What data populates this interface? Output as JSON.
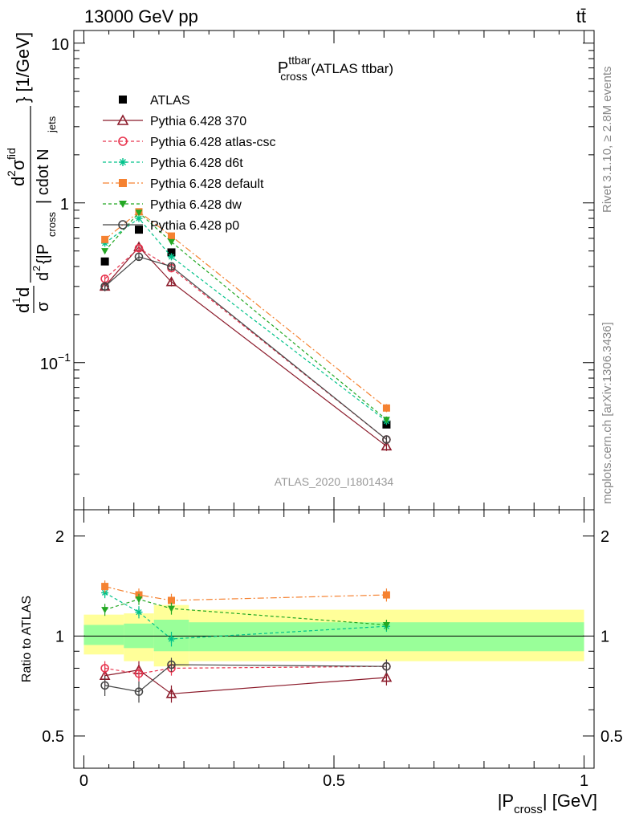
{
  "header": {
    "left": "13000 GeV pp",
    "right": "tt̄"
  },
  "side_right": {
    "top": "Rivet 3.1.10, ≥ 2.8M events",
    "bottom": "mcplots.cern.ch [arXiv:1306.3436]"
  },
  "watermark": "ATLAS_2020_I1801434",
  "chart_data": [
    {
      "type": "line",
      "title": {
        "main": "P",
        "sup": "ttbar",
        "sub": "cross",
        "rest": " (ATLAS ttbar)"
      },
      "ylabel": "d¹d/dσ d²σᵗᵈ / d²{|P_cross| cdot N_jets} [1/GeV]",
      "ylabel_parts": {
        "frac1_num": "d",
        "frac1_sup": "1",
        "frac1_rest": "d",
        "frac1_den": "σ",
        "num": "d",
        "num_sup": "2",
        "num_sigma": "σ",
        "num_sigma_sup": "fid",
        "den_d": "d",
        "den_sup": "2",
        "den_open": "{|P",
        "den_sub": "cross",
        "den_mid": "| cdot N",
        "den_sub2": "jets",
        "tail": "} [1/GeV]"
      },
      "ytype": "log",
      "ylim": [
        0.012,
        12
      ],
      "yticks": [
        {
          "value": 0.1,
          "base": "10",
          "exp": "−1"
        },
        {
          "value": 1,
          "base": "1",
          "exp": ""
        },
        {
          "value": 10,
          "base": "10",
          "exp": ""
        }
      ],
      "x": [
        0.042,
        0.11,
        0.175,
        0.605
      ],
      "series": [
        {
          "name": "ATLAS",
          "color": "#000000",
          "marker": "square-filled",
          "dash": "",
          "y": [
            0.43,
            0.68,
            0.49,
            0.041
          ],
          "yerr": [
            0,
            0,
            0,
            0
          ]
        },
        {
          "name": "Pythia 6.428 370",
          "color": "#8B1A2A",
          "marker": "triangle-open",
          "dash": "",
          "y": [
            0.3,
            0.53,
            0.32,
            0.03
          ],
          "yerr": [
            0.02,
            0.03,
            0.02,
            0.002
          ]
        },
        {
          "name": "Pythia 6.428 atlas-csc",
          "color": "#E8344E",
          "marker": "circle-open",
          "dash": "4,3",
          "y": [
            0.335,
            0.52,
            0.39,
            0.033
          ],
          "yerr": [
            0.015,
            0.02,
            0.02,
            0.002
          ]
        },
        {
          "name": "Pythia 6.428 d6t",
          "color": "#00C28A",
          "marker": "star",
          "dash": "4,3",
          "y": [
            0.56,
            0.8,
            0.46,
            0.043
          ],
          "yerr": [
            0.02,
            0.03,
            0.02,
            0.002
          ]
        },
        {
          "name": "Pythia 6.428 default",
          "color": "#F58231",
          "marker": "square-filled",
          "dash": "8,3,2,3",
          "y": [
            0.59,
            0.88,
            0.62,
            0.052
          ],
          "yerr": [
            0.02,
            0.03,
            0.03,
            0.003
          ]
        },
        {
          "name": "Pythia 6.428 dw",
          "color": "#23A823",
          "marker": "triangle-down",
          "dash": "4,3",
          "y": [
            0.5,
            0.87,
            0.57,
            0.044
          ],
          "yerr": [
            0.02,
            0.03,
            0.02,
            0.002
          ]
        },
        {
          "name": "Pythia 6.428 p0",
          "color": "#444444",
          "marker": "circle-open",
          "dash": "",
          "y": [
            0.3,
            0.46,
            0.4,
            0.033
          ],
          "yerr": [
            0.02,
            0.02,
            0.02,
            0.002
          ]
        }
      ],
      "legend_placement": "upper-left"
    },
    {
      "type": "line",
      "ylabel": "Ratio to ATLAS",
      "xlabel": {
        "open": "|P",
        "sub": "cross",
        "close": "| [GeV]"
      },
      "ytype": "log",
      "ylim": [
        0.4,
        2.4
      ],
      "yticks": [
        0.5,
        1,
        2
      ],
      "xlim": [
        -0.02,
        1.02
      ],
      "xticks": [
        {
          "value": 0,
          "label": "0"
        },
        {
          "value": 0.5,
          "label": "0.5"
        },
        {
          "value": 1,
          "label": "1"
        }
      ],
      "bands": {
        "bins": [
          0.0,
          0.08,
          0.14,
          0.21,
          1.0
        ],
        "inner": [
          [
            0.94,
            1.08
          ],
          [
            0.92,
            1.09
          ],
          [
            0.9,
            1.12
          ],
          [
            0.9,
            1.1
          ]
        ],
        "outer": [
          [
            0.88,
            1.16
          ],
          [
            0.84,
            1.17
          ],
          [
            0.81,
            1.24
          ],
          [
            0.84,
            1.2
          ]
        ],
        "inner_color": "#99FF99",
        "outer_color": "#FFFF99"
      },
      "x": [
        0.042,
        0.11,
        0.175,
        0.605
      ],
      "series": [
        {
          "name": "Pythia 6.428 370",
          "y": [
            0.76,
            0.79,
            0.67,
            0.75
          ],
          "yerr": [
            0.05,
            0.05,
            0.04,
            0.04
          ]
        },
        {
          "name": "Pythia 6.428 atlas-csc",
          "y": [
            0.8,
            0.77,
            0.8,
            0.81
          ],
          "yerr": [
            0.04,
            0.04,
            0.04,
            0.04
          ]
        },
        {
          "name": "Pythia 6.428 d6t",
          "y": [
            1.35,
            1.18,
            0.98,
            1.07
          ],
          "yerr": [
            0.05,
            0.05,
            0.05,
            0.04
          ]
        },
        {
          "name": "Pythia 6.428 default",
          "y": [
            1.41,
            1.33,
            1.28,
            1.33
          ],
          "yerr": [
            0.06,
            0.06,
            0.06,
            0.06
          ]
        },
        {
          "name": "Pythia 6.428 dw",
          "y": [
            1.2,
            1.29,
            1.21,
            1.08
          ],
          "yerr": [
            0.05,
            0.05,
            0.05,
            0.04
          ]
        },
        {
          "name": "Pythia 6.428 p0",
          "y": [
            0.71,
            0.68,
            0.82,
            0.81
          ],
          "yerr": [
            0.05,
            0.05,
            0.04,
            0.04
          ]
        }
      ]
    }
  ]
}
